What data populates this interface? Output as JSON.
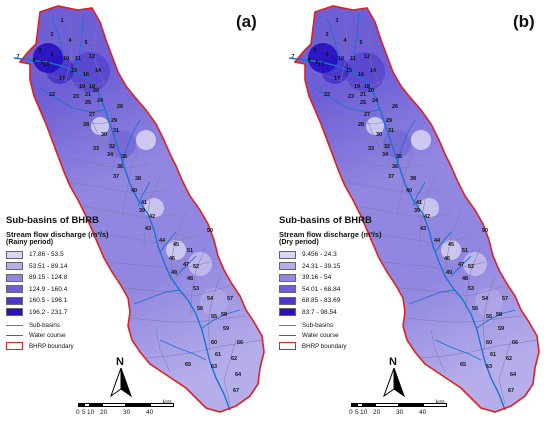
{
  "title": "Sub-basins of BHRB",
  "panels": [
    {
      "id": "a",
      "label": "(a)",
      "legend_title": "Sub-basins of BHRB",
      "legend_sub": "Stream flow discharge",
      "legend_unit": "(m³/s)",
      "period": "(Rainy period)",
      "classes": [
        {
          "label": "17.86 - 53.5",
          "color": "#d9d6f3"
        },
        {
          "label": "53.51 - 89.14",
          "color": "#b5aeea"
        },
        {
          "label": "89.15 - 124.8",
          "color": "#9287e0"
        },
        {
          "label": "124.9 - 160.4",
          "color": "#6e5fd6"
        },
        {
          "label": "160.5 - 196.1",
          "color": "#4b37cb"
        },
        {
          "label": "196.2 - 231.7",
          "color": "#2610c0"
        }
      ]
    },
    {
      "id": "b",
      "label": "(b)",
      "legend_title": "Sub-basins of BHRB",
      "legend_sub": "Stream flow discharge",
      "legend_unit": "(m³/s)",
      "period": "(Dry period)",
      "classes": [
        {
          "label": "9.456 - 24.3",
          "color": "#d9d6f3"
        },
        {
          "label": "24.31 - 39.15",
          "color": "#b5aeea"
        },
        {
          "label": "39.16 - 54",
          "color": "#9287e0"
        },
        {
          "label": "54.01 - 68.84",
          "color": "#6e5fd6"
        },
        {
          "label": "68.85 - 83.69",
          "color": "#4b37cb"
        },
        {
          "label": "83.7 - 98.54",
          "color": "#2610c0"
        }
      ]
    }
  ],
  "legend_lines": {
    "subbasins": "Sub-basins",
    "water_course": "Water course",
    "boundary": "BHRP boundary"
  },
  "north_label": "N",
  "scale": {
    "ticks": [
      "0",
      "5",
      "10",
      "20",
      "30",
      "40"
    ],
    "unit": "km"
  },
  "subbasin_numbers": [
    "1",
    "2",
    "3",
    "4",
    "5",
    "6",
    "7",
    "8",
    "9",
    "10",
    "11",
    "12",
    "13",
    "14",
    "15",
    "16",
    "17",
    "18",
    "19",
    "20",
    "21",
    "22",
    "23",
    "24",
    "25",
    "26",
    "27",
    "28",
    "29",
    "30",
    "31",
    "32",
    "33",
    "34",
    "35",
    "36",
    "37",
    "38",
    "39",
    "40",
    "41",
    "42",
    "43",
    "44",
    "45",
    "46",
    "47",
    "48",
    "49",
    "50",
    "51",
    "52",
    "53",
    "54",
    "55",
    "56",
    "57",
    "58",
    "59",
    "60",
    "61",
    "62",
    "63",
    "64",
    "65",
    "66",
    "67"
  ],
  "colors": {
    "boundary": "#e02020",
    "water_course": "#1a73d0",
    "subbasin_line": "#7a78a8"
  }
}
